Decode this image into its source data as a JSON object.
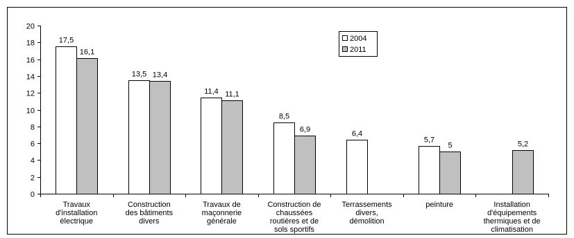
{
  "chart_data": {
    "type": "bar",
    "categories": [
      [
        "Travaux",
        "d'installation",
        "électrique"
      ],
      [
        "Construction",
        "des bâtiments",
        "divers"
      ],
      [
        "Travaux de",
        "maçonnerie",
        "générale"
      ],
      [
        "Construction de",
        "chaussées",
        "routières et de",
        "sols sportifs"
      ],
      [
        "Terrassements",
        "divers,",
        "démolition"
      ],
      [
        "peinture"
      ],
      [
        "Installation",
        "d'équipements",
        "thermiques et de",
        "climatisation"
      ]
    ],
    "series": [
      {
        "name": "2004",
        "values": [
          17.5,
          13.5,
          11.4,
          8.5,
          6.4,
          5.7,
          null
        ],
        "labels": [
          "17,5",
          "13,5",
          "11,4",
          "8,5",
          "6,4",
          "5,7",
          null
        ],
        "color": "#ffffff"
      },
      {
        "name": "2011",
        "values": [
          16.1,
          13.4,
          11.1,
          6.9,
          null,
          5,
          5.2
        ],
        "labels": [
          "16,1",
          "13,4",
          "11,1",
          "6,9",
          null,
          "5",
          "5,2"
        ],
        "color": "#c0c0c0"
      }
    ],
    "ylim": [
      0,
      20
    ],
    "yticks": [
      0,
      2,
      4,
      6,
      8,
      10,
      12,
      14,
      16,
      18,
      20
    ],
    "legend_position": "top-right",
    "grid": false
  }
}
